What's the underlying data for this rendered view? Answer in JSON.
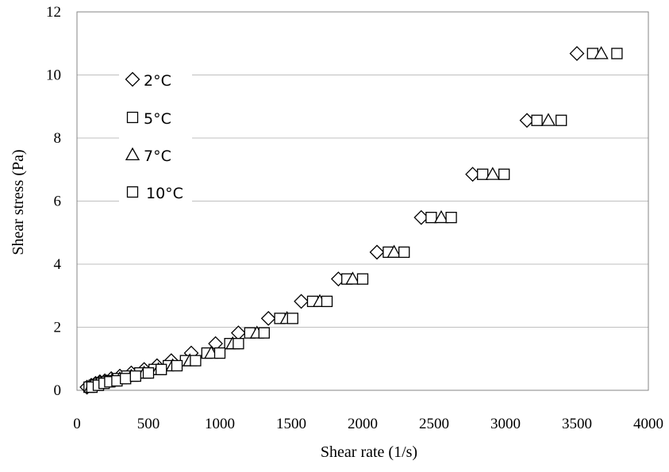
{
  "chart_data": {
    "type": "scatter",
    "title": "",
    "xlabel": "Shear rate (1/s)",
    "ylabel": "Shear stress (Pa)",
    "xlim": [
      0,
      4000
    ],
    "ylim": [
      0,
      12
    ],
    "x_ticks": [
      "0",
      "500",
      "1000",
      "1500",
      "2000",
      "2500",
      "3000",
      "3500",
      "4000"
    ],
    "y_ticks": [
      "0",
      "2",
      "4",
      "6",
      "8",
      "10",
      "12"
    ],
    "grid": "horizontal",
    "legend_position": "top-left",
    "series": [
      {
        "name": "2°C",
        "marker": "diamond",
        "points": [
          [
            70,
            0.1
          ],
          [
            100,
            0.16
          ],
          [
            130,
            0.22
          ],
          [
            160,
            0.27
          ],
          [
            195,
            0.3
          ],
          [
            240,
            0.37
          ],
          [
            300,
            0.45
          ],
          [
            380,
            0.55
          ],
          [
            470,
            0.66
          ],
          [
            560,
            0.78
          ],
          [
            660,
            0.94
          ],
          [
            800,
            1.18
          ],
          [
            970,
            1.48
          ],
          [
            1130,
            1.82
          ],
          [
            1340,
            2.28
          ],
          [
            1570,
            2.82
          ],
          [
            1830,
            3.53
          ],
          [
            2100,
            4.38
          ],
          [
            2410,
            5.48
          ],
          [
            2770,
            6.85
          ],
          [
            3150,
            8.56
          ],
          [
            3500,
            10.68
          ]
        ]
      },
      {
        "name": "5°C",
        "marker": "square",
        "points": [
          [
            85,
            0.1
          ],
          [
            120,
            0.16
          ],
          [
            155,
            0.22
          ],
          [
            190,
            0.27
          ],
          [
            230,
            0.3
          ],
          [
            280,
            0.37
          ],
          [
            350,
            0.45
          ],
          [
            440,
            0.55
          ],
          [
            540,
            0.66
          ],
          [
            640,
            0.78
          ],
          [
            760,
            0.94
          ],
          [
            910,
            1.18
          ],
          [
            1070,
            1.48
          ],
          [
            1210,
            1.82
          ],
          [
            1420,
            2.28
          ],
          [
            1650,
            2.82
          ],
          [
            1890,
            3.53
          ],
          [
            2180,
            4.38
          ],
          [
            2480,
            5.48
          ],
          [
            2840,
            6.85
          ],
          [
            3220,
            8.56
          ],
          [
            3610,
            10.68
          ]
        ]
      },
      {
        "name": "7°C",
        "marker": "triangle",
        "points": [
          [
            95,
            0.1
          ],
          [
            135,
            0.16
          ],
          [
            170,
            0.22
          ],
          [
            210,
            0.27
          ],
          [
            250,
            0.3
          ],
          [
            300,
            0.37
          ],
          [
            380,
            0.45
          ],
          [
            470,
            0.55
          ],
          [
            570,
            0.66
          ],
          [
            670,
            0.78
          ],
          [
            790,
            0.94
          ],
          [
            940,
            1.18
          ],
          [
            1090,
            1.48
          ],
          [
            1260,
            1.82
          ],
          [
            1470,
            2.28
          ],
          [
            1700,
            2.82
          ],
          [
            1930,
            3.53
          ],
          [
            2220,
            4.38
          ],
          [
            2550,
            5.48
          ],
          [
            2910,
            6.85
          ],
          [
            3300,
            8.56
          ],
          [
            3670,
            10.68
          ]
        ]
      },
      {
        "name": "10°C",
        "marker": "square",
        "points": [
          [
            105,
            0.1
          ],
          [
            150,
            0.16
          ],
          [
            190,
            0.22
          ],
          [
            230,
            0.27
          ],
          [
            280,
            0.3
          ],
          [
            340,
            0.37
          ],
          [
            410,
            0.45
          ],
          [
            500,
            0.55
          ],
          [
            590,
            0.66
          ],
          [
            700,
            0.78
          ],
          [
            830,
            0.94
          ],
          [
            1000,
            1.18
          ],
          [
            1130,
            1.48
          ],
          [
            1310,
            1.82
          ],
          [
            1510,
            2.28
          ],
          [
            1750,
            2.82
          ],
          [
            2000,
            3.53
          ],
          [
            2290,
            4.38
          ],
          [
            2620,
            5.48
          ],
          [
            2990,
            6.85
          ],
          [
            3390,
            8.56
          ],
          [
            3780,
            10.68
          ]
        ]
      }
    ]
  }
}
